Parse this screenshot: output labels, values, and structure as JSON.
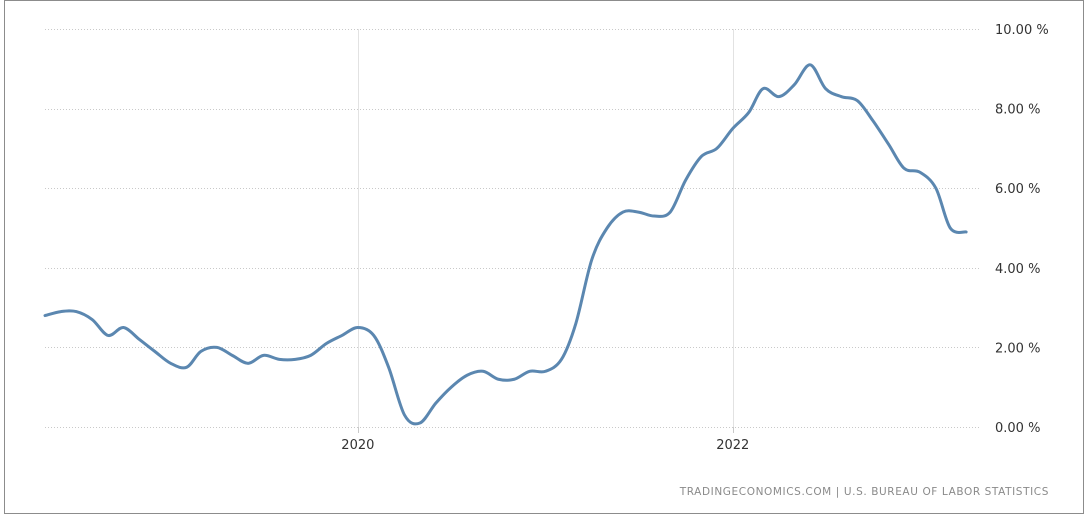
{
  "chart_data": {
    "type": "line",
    "title": "",
    "xlabel": "",
    "ylabel": "",
    "ylim": [
      0,
      10
    ],
    "xlim": [
      "2018-05-01",
      "2023-04-30"
    ],
    "y_ticks": [
      0,
      2,
      4,
      6,
      8,
      10
    ],
    "y_tick_labels": [
      "0.00 %",
      "2.00 %",
      "4.00 %",
      "6.00 %",
      "8.00 %",
      "10.00 %"
    ],
    "x_ticks": [
      "2020-01-01",
      "2022-01-01"
    ],
    "x_tick_labels": [
      "2020",
      "2022"
    ],
    "grid": true,
    "legend": "none",
    "line_color": "#5b87b0",
    "series": [
      {
        "x": [
          "2018-05",
          "2018-06",
          "2018-07",
          "2018-08",
          "2018-09",
          "2018-10",
          "2018-11",
          "2018-12",
          "2019-01",
          "2019-02",
          "2019-03",
          "2019-04",
          "2019-05",
          "2019-06",
          "2019-07",
          "2019-08",
          "2019-09",
          "2019-10",
          "2019-11",
          "2019-12",
          "2020-01",
          "2020-02",
          "2020-03",
          "2020-04",
          "2020-05",
          "2020-06",
          "2020-07",
          "2020-08",
          "2020-09",
          "2020-10",
          "2020-11",
          "2020-12",
          "2021-01",
          "2021-02",
          "2021-03",
          "2021-04",
          "2021-05",
          "2021-06",
          "2021-07",
          "2021-08",
          "2021-09",
          "2021-10",
          "2021-11",
          "2021-12",
          "2022-01",
          "2022-02",
          "2022-03",
          "2022-04",
          "2022-05",
          "2022-06",
          "2022-07",
          "2022-08",
          "2022-09",
          "2022-10",
          "2022-11",
          "2022-12",
          "2023-01",
          "2023-02",
          "2023-03",
          "2023-04"
        ],
        "values": [
          2.8,
          2.9,
          2.9,
          2.7,
          2.3,
          2.5,
          2.2,
          1.9,
          1.6,
          1.5,
          1.9,
          2.0,
          1.8,
          1.6,
          1.8,
          1.7,
          1.7,
          1.8,
          2.1,
          2.3,
          2.5,
          2.3,
          1.5,
          0.3,
          0.1,
          0.6,
          1.0,
          1.3,
          1.4,
          1.2,
          1.2,
          1.4,
          1.4,
          1.7,
          2.6,
          4.2,
          5.0,
          5.4,
          5.4,
          5.3,
          5.4,
          6.2,
          6.8,
          7.0,
          7.5,
          7.9,
          8.5,
          8.3,
          8.6,
          9.1,
          8.5,
          8.3,
          8.2,
          7.7,
          7.1,
          6.5,
          6.4,
          6.0,
          5.0,
          4.9
        ]
      }
    ]
  },
  "source_text": "TRADINGECONOMICS.COM  |  U.S. BUREAU OF LABOR STATISTICS"
}
